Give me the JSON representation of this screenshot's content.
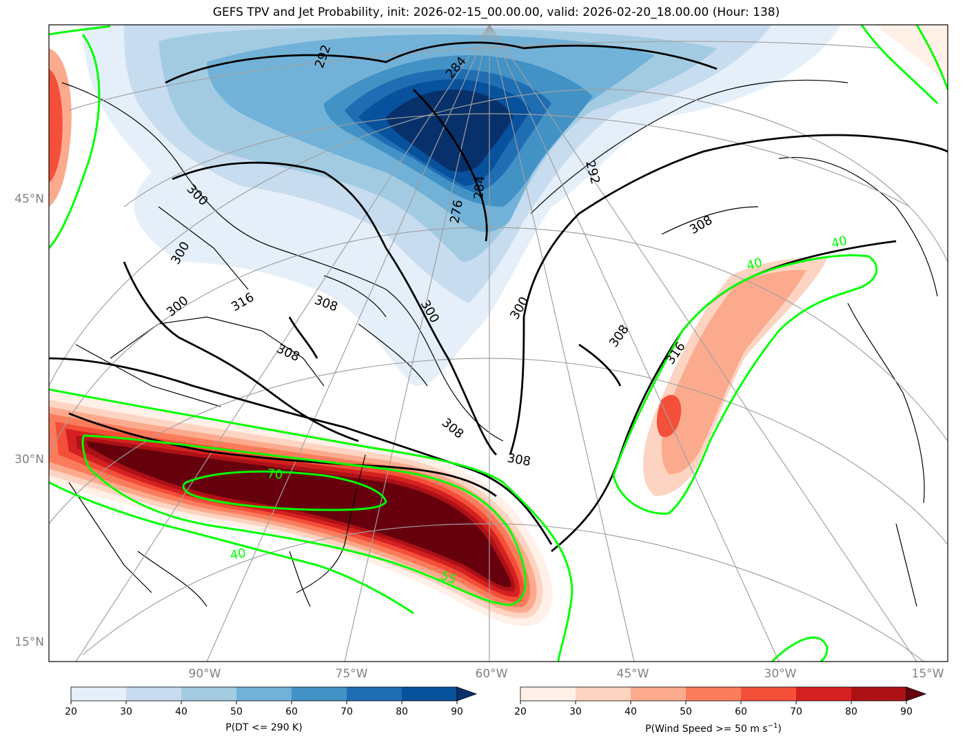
{
  "title": "GEFS TPV and Jet Probability, init: 2026-02-15_00.00.00, valid: 2026-02-20_18.00.00 (Hour: 138)",
  "lat_labels": [
    "45°N",
    "30°N",
    "15°N"
  ],
  "lon_labels": [
    "90°W",
    "75°W",
    "60°W",
    "45°W",
    "30°W",
    "15°W"
  ],
  "theta_contour_labels": [
    "292",
    "284",
    "292",
    "284",
    "276",
    "300",
    "300",
    "300",
    "316",
    "308",
    "300",
    "300",
    "308",
    "308",
    "316",
    "308",
    "308",
    "308"
  ],
  "jet_contour_labels": [
    "70",
    "40",
    "55",
    "40",
    "40"
  ],
  "colorbar_tpv": {
    "label": "P(DT <= 290 K)",
    "ticks": [
      "20",
      "30",
      "40",
      "50",
      "60",
      "70",
      "80",
      "90"
    ],
    "colors": [
      "#e4eff9",
      "#c7dcef",
      "#a2cbe2",
      "#72b2d8",
      "#4292c6",
      "#1f6eb3",
      "#08519c",
      "#08306b"
    ]
  },
  "colorbar_jet": {
    "label_main": "P(Wind Speed >= 50 m s",
    "label_sup": "−1",
    "label_end": ")",
    "ticks": [
      "20",
      "30",
      "40",
      "50",
      "60",
      "70",
      "80",
      "90"
    ],
    "colors": [
      "#fff0e8",
      "#fdd4c2",
      "#fcaa8d",
      "#fb7c5c",
      "#f44f39",
      "#d42020",
      "#ad1116",
      "#67000d"
    ]
  },
  "colors": {
    "jet_contour": "#00ff00",
    "theta_contour": "#000000",
    "graticule": "#a0a0a0"
  }
}
